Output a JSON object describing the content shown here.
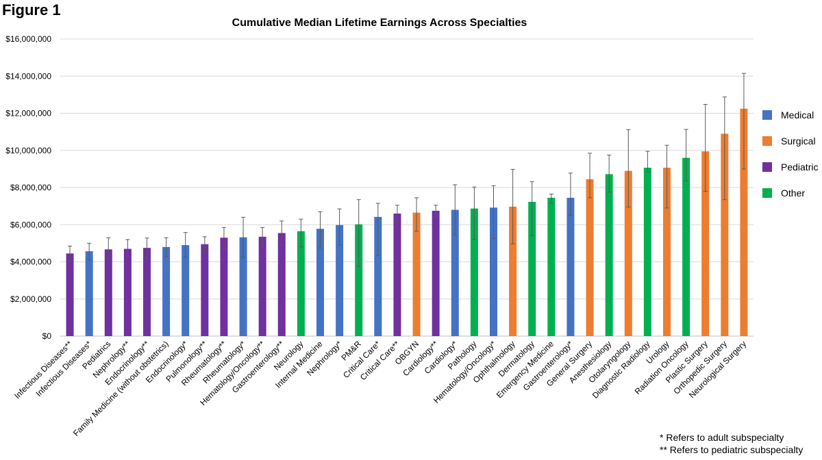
{
  "figure_label": "Figure 1",
  "footnotes": {
    "adult": "* Refers to adult subspecialty",
    "pediatric": "** Refers to pediatric subspecialty"
  },
  "colors": {
    "Medical": "#4472c4",
    "Surgical": "#ed7d31",
    "Pediatric": "#7030a0",
    "Other": "#00b050"
  },
  "chart_data": {
    "type": "bar",
    "title": "Cumulative Median Lifetime Earnings Across Specialties",
    "xlabel": "",
    "ylabel": "",
    "ylim": [
      0,
      16000000
    ],
    "yticks": [
      "$0",
      "$2,000,000",
      "$4,000,000",
      "$6,000,000",
      "$8,000,000",
      "$10,000,000",
      "$12,000,000",
      "$14,000,000",
      "$16,000,000"
    ],
    "grid": true,
    "legend_position": "right",
    "legend": [
      "Medical",
      "Surgical",
      "Pediatric",
      "Other"
    ],
    "bars": [
      {
        "label": "Infectious Diseases**",
        "group": "Pediatric",
        "value": 4450000,
        "err_low": 4050000,
        "err_high": 4850000
      },
      {
        "label": "Infectious Diseases*",
        "group": "Medical",
        "value": 4570000,
        "err_low": 4100000,
        "err_high": 5000000
      },
      {
        "label": "Pediatrics",
        "group": "Pediatric",
        "value": 4670000,
        "err_low": 4150000,
        "err_high": 5300000
      },
      {
        "label": "Nephrology**",
        "group": "Pediatric",
        "value": 4700000,
        "err_low": 4200000,
        "err_high": 5200000
      },
      {
        "label": "Endocrinology**",
        "group": "Pediatric",
        "value": 4750000,
        "err_low": 4200000,
        "err_high": 5280000
      },
      {
        "label": "Family Medicine (without obstetrics)",
        "group": "Medical",
        "value": 4800000,
        "err_low": 4280000,
        "err_high": 5300000
      },
      {
        "label": "Endocrinology*",
        "group": "Medical",
        "value": 4900000,
        "err_low": 4250000,
        "err_high": 5580000
      },
      {
        "label": "Pulmonology**",
        "group": "Pediatric",
        "value": 4950000,
        "err_low": 4500000,
        "err_high": 5350000
      },
      {
        "label": "Rheumatology**",
        "group": "Pediatric",
        "value": 5300000,
        "err_low": 4700000,
        "err_high": 5850000
      },
      {
        "label": "Rheumatology*",
        "group": "Medical",
        "value": 5320000,
        "err_low": 4250000,
        "err_high": 6400000
      },
      {
        "label": "Hematology/Oncology**",
        "group": "Pediatric",
        "value": 5350000,
        "err_low": 4800000,
        "err_high": 5850000
      },
      {
        "label": "Gastroenterology**",
        "group": "Pediatric",
        "value": 5550000,
        "err_low": 4900000,
        "err_high": 6200000
      },
      {
        "label": "Neurology",
        "group": "Other",
        "value": 5650000,
        "err_low": 4800000,
        "err_high": 6300000
      },
      {
        "label": "Internal Medicine",
        "group": "Medical",
        "value": 5780000,
        "err_low": 4750000,
        "err_high": 6700000
      },
      {
        "label": "Nephrology*",
        "group": "Medical",
        "value": 5980000,
        "err_low": 4900000,
        "err_high": 6850000
      },
      {
        "label": "PM&R",
        "group": "Other",
        "value": 6020000,
        "err_low": 3750000,
        "err_high": 7350000
      },
      {
        "label": "Critical Care*",
        "group": "Medical",
        "value": 6420000,
        "err_low": 4350000,
        "err_high": 7150000
      },
      {
        "label": "Critical Care**",
        "group": "Pediatric",
        "value": 6600000,
        "err_low": 6100000,
        "err_high": 7050000
      },
      {
        "label": "OBGYN",
        "group": "Surgical",
        "value": 6650000,
        "err_low": 5650000,
        "err_high": 7450000
      },
      {
        "label": "Cardiology**",
        "group": "Pediatric",
        "value": 6750000,
        "err_low": 6400000,
        "err_high": 7050000
      },
      {
        "label": "Cardiology*",
        "group": "Medical",
        "value": 6800000,
        "err_low": 5450000,
        "err_high": 8150000
      },
      {
        "label": "Pathology",
        "group": "Other",
        "value": 6870000,
        "err_low": 5200000,
        "err_high": 8030000
      },
      {
        "label": "Hematology/Oncology*",
        "group": "Medical",
        "value": 6920000,
        "err_low": 5250000,
        "err_high": 8100000
      },
      {
        "label": "Ophthalmology",
        "group": "Surgical",
        "value": 6970000,
        "err_low": 4970000,
        "err_high": 8980000
      },
      {
        "label": "Dermatology",
        "group": "Other",
        "value": 7230000,
        "err_low": 5400000,
        "err_high": 8320000
      },
      {
        "label": "Emergency Medicine",
        "group": "Other",
        "value": 7450000,
        "err_low": 7150000,
        "err_high": 7650000
      },
      {
        "label": "Gastroenterology*",
        "group": "Medical",
        "value": 7450000,
        "err_low": 6500000,
        "err_high": 8780000
      },
      {
        "label": "General Surgery",
        "group": "Surgical",
        "value": 8450000,
        "err_low": 7450000,
        "err_high": 9850000
      },
      {
        "label": "Anesthesiology",
        "group": "Other",
        "value": 8720000,
        "err_low": 7750000,
        "err_high": 9750000
      },
      {
        "label": "Otolaryngology",
        "group": "Surgical",
        "value": 8900000,
        "err_low": 6950000,
        "err_high": 11120000
      },
      {
        "label": "Diagnostic Radiology",
        "group": "Other",
        "value": 9070000,
        "err_low": 8850000,
        "err_high": 9950000
      },
      {
        "label": "Urology",
        "group": "Surgical",
        "value": 9070000,
        "err_low": 6900000,
        "err_high": 10280000
      },
      {
        "label": "Radiation Oncology",
        "group": "Other",
        "value": 9600000,
        "err_low": 8350000,
        "err_high": 11130000
      },
      {
        "label": "Plastic Surgery",
        "group": "Surgical",
        "value": 9950000,
        "err_low": 7800000,
        "err_high": 12480000
      },
      {
        "label": "Orthopedic Surgery",
        "group": "Surgical",
        "value": 10900000,
        "err_low": 7350000,
        "err_high": 12880000
      },
      {
        "label": "Neurological Surgery",
        "group": "Surgical",
        "value": 12250000,
        "err_low": 9000000,
        "err_high": 14150000
      }
    ]
  }
}
